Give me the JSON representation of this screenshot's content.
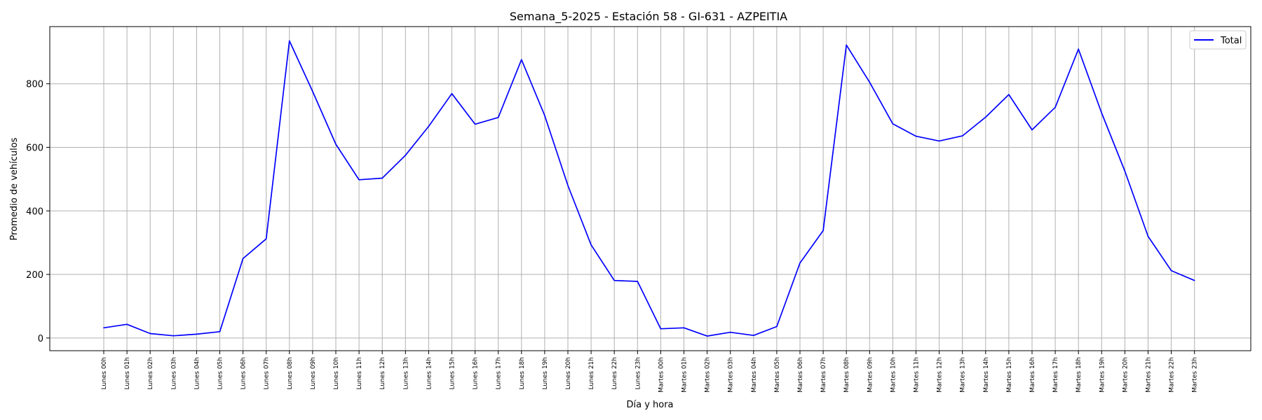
{
  "chart_data": {
    "type": "line",
    "title": "Semana_5-2025 - Estación 58 - GI-631  - AZPEITIA",
    "xlabel": "Día y hora",
    "ylabel": "Promedio de vehículos",
    "ylim": [
      -40,
      980
    ],
    "yticks": [
      0,
      200,
      400,
      600,
      800
    ],
    "grid": true,
    "legend_position": "top-right",
    "categories": [
      "Lunes 00h",
      "Lunes 01h",
      "Lunes 02h",
      "Lunes 03h",
      "Lunes 04h",
      "Lunes 05h",
      "Lunes 06h",
      "Lunes 07h",
      "Lunes 08h",
      "Lunes 09h",
      "Lunes 10h",
      "Lunes 11h",
      "Lunes 12h",
      "Lunes 13h",
      "Lunes 14h",
      "Lunes 15h",
      "Lunes 16h",
      "Lunes 17h",
      "Lunes 18h",
      "Lunes 19h",
      "Lunes 20h",
      "Lunes 21h",
      "Lunes 22h",
      "Lunes 23h",
      "Martes 00h",
      "Martes 01h",
      "Martes 02h",
      "Martes 03h",
      "Martes 04h",
      "Martes 05h",
      "Martes 06h",
      "Martes 07h",
      "Martes 08h",
      "Martes 09h",
      "Martes 10h",
      "Martes 11h",
      "Martes 12h",
      "Martes 13h",
      "Martes 14h",
      "Martes 15h",
      "Martes 16h",
      "Martes 17h",
      "Martes 18h",
      "Martes 19h",
      "Martes 20h",
      "Martes 21h",
      "Martes 22h",
      "Martes 23h"
    ],
    "series": [
      {
        "name": "Total",
        "color": "#0000ff",
        "values": [
          32,
          43,
          14,
          7,
          12,
          20,
          250,
          312,
          935,
          776,
          610,
          498,
          503,
          575,
          666,
          769,
          673,
          694,
          876,
          700,
          480,
          293,
          181,
          178,
          29,
          32,
          6,
          18,
          8,
          36,
          236,
          338,
          922,
          805,
          674,
          635,
          620,
          636,
          695,
          766,
          655,
          726,
          909,
          708,
          525,
          320,
          212,
          181
        ]
      }
    ]
  }
}
